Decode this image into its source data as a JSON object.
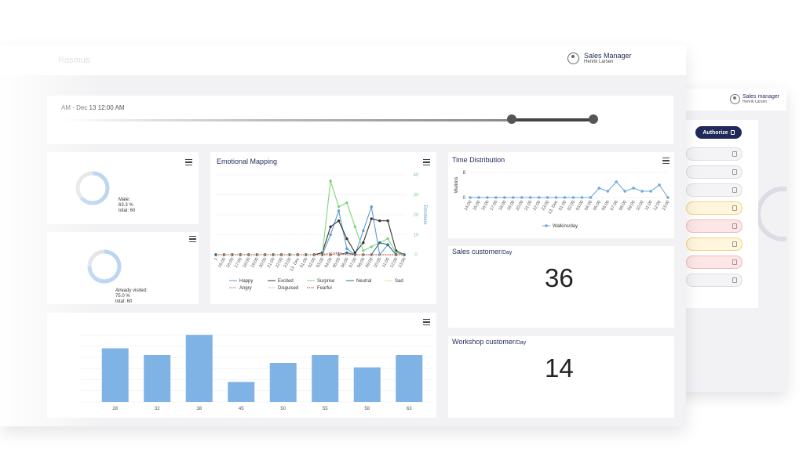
{
  "back_screen": {
    "user_name": "Sales manager",
    "user_sub": "Henrik Larsen",
    "authorize_label": "Authorize",
    "pills": [
      "grey",
      "grey",
      "grey",
      "yellow",
      "pink",
      "yellow",
      "pink",
      "grey"
    ]
  },
  "header": {
    "ghost_title": "Rasmus",
    "user_name": "Sales Manager",
    "user_sub": "Henrik Larsen"
  },
  "range": {
    "label": "AM - Dec 13 12:00 AM"
  },
  "gender_card": {
    "line1": "Male:",
    "line2": "63.3 %",
    "line3": "total: 60",
    "fraction": 0.633
  },
  "visited_card": {
    "line1": "Already visited:",
    "line2": "75.0 %",
    "line3": "total: 60",
    "fraction": 0.75
  },
  "emotional": {
    "title": "Emotional Mapping",
    "y2_label": "Emotions",
    "legend": [
      "Happy",
      "Excited",
      "Surprise",
      "Neutral",
      "Sad",
      "Angry",
      "Disguised",
      "Fearful"
    ]
  },
  "time_distribution": {
    "title": "Time Distribution",
    "ylabel": "Walkins",
    "legend": "Walkins/day"
  },
  "sales_customer": {
    "title": "Sales customer",
    "unit": "/Day",
    "value": "36"
  },
  "workshop_customer": {
    "title": "Workshop customer",
    "unit": "/Day",
    "value": "14"
  },
  "chart_data": [
    {
      "type": "line",
      "title": "Emotional Mapping",
      "x": [
        "1",
        "15:00",
        "16:00",
        "17:00",
        "18:00",
        "19:00",
        "20:00",
        "21:00",
        "22:00",
        "23:00",
        "13. Dec",
        "01:00",
        "02:00",
        "03:00",
        "04:00",
        "05:00",
        "06:00",
        "07:00",
        "08:00",
        "09:00",
        "10:00",
        "11:00",
        "12:00",
        "13:00"
      ],
      "y2_ticks": [
        0,
        10,
        20,
        30,
        40
      ],
      "series": [
        {
          "name": "Happy",
          "color": "#5b9bd5",
          "values": [
            0,
            0,
            0,
            0,
            0,
            0,
            0,
            0,
            0,
            0,
            0,
            0,
            0,
            0,
            10,
            22,
            3,
            0,
            12,
            24,
            0,
            5,
            0,
            0
          ]
        },
        {
          "name": "Excited",
          "color": "#333333",
          "values": [
            0,
            0,
            0,
            0,
            0,
            0,
            0,
            0,
            0,
            0,
            0,
            0,
            0,
            1,
            14,
            17,
            8,
            1,
            6,
            18,
            17,
            17,
            2,
            0
          ]
        },
        {
          "name": "Surprise",
          "color": "#7ed37e",
          "values": [
            0,
            0,
            0,
            0,
            0,
            0,
            0,
            0,
            0,
            0,
            0,
            0,
            0,
            0,
            37,
            24,
            26,
            14,
            2,
            4,
            6,
            8,
            1,
            0
          ]
        },
        {
          "name": "Neutral",
          "color": "#2b6e8f",
          "values": [
            0,
            0,
            0,
            0,
            0,
            0,
            0,
            0,
            0,
            0,
            0,
            0,
            0,
            0,
            0,
            0,
            1,
            0,
            0,
            0,
            6,
            5,
            0,
            0
          ]
        },
        {
          "name": "Sad",
          "color": "#f0e08a",
          "values": [
            0,
            0,
            0,
            0,
            0,
            0,
            0,
            0,
            0,
            0,
            0,
            0,
            0,
            0,
            0,
            0,
            0,
            0,
            0,
            0,
            0,
            0,
            0,
            0
          ]
        },
        {
          "name": "Angry",
          "color": "#d46a6a",
          "values": [
            0,
            0,
            0,
            0,
            0,
            0,
            0,
            0,
            0,
            0,
            0,
            0,
            0,
            0,
            1,
            1,
            0,
            0,
            0,
            0,
            0,
            0,
            0,
            0
          ]
        },
        {
          "name": "Disguised",
          "color": "#e6a0a0",
          "values": [
            0,
            0,
            0,
            0,
            0,
            0,
            0,
            0,
            0,
            0,
            0,
            0,
            0,
            0,
            0,
            0,
            0,
            0,
            0,
            0,
            0,
            0,
            0,
            0
          ]
        },
        {
          "name": "Fearful",
          "color": "#b33a3a",
          "values": [
            0,
            0,
            0,
            0,
            0,
            0,
            0,
            0,
            0,
            0,
            0,
            0,
            0,
            0,
            0,
            1,
            0,
            0,
            0,
            0,
            0,
            0,
            0,
            0
          ]
        }
      ]
    },
    {
      "type": "line",
      "title": "Time Distribution",
      "ylabel": "Walkins",
      "x": [
        "14:00",
        "15:00",
        "16:00",
        "17:00",
        "18:00",
        "19:00",
        "20:00",
        "21:00",
        "22:00",
        "23:00",
        "13. Dec",
        "01:00",
        "02:00",
        "03:00",
        "04:00",
        "05:00",
        "06:00",
        "07:00",
        "08:00",
        "09:00",
        "10:00",
        "11:00",
        "12:00",
        "13:00"
      ],
      "y_ticks": [
        0,
        8
      ],
      "series": [
        {
          "name": "Walkins/day",
          "color": "#6fa8dc",
          "values": [
            0,
            0,
            0,
            0,
            0,
            0,
            0,
            0,
            0,
            0,
            0,
            0,
            0,
            0,
            0,
            3,
            2,
            5,
            2,
            3,
            2,
            2,
            4,
            0
          ]
        }
      ]
    },
    {
      "type": "bar",
      "categories": [
        "28",
        "32",
        "38",
        "45",
        "50",
        "55",
        "58",
        "63"
      ],
      "values": [
        48,
        42,
        60,
        18,
        35,
        42,
        31,
        42
      ],
      "color": "#7fb2e5"
    }
  ]
}
